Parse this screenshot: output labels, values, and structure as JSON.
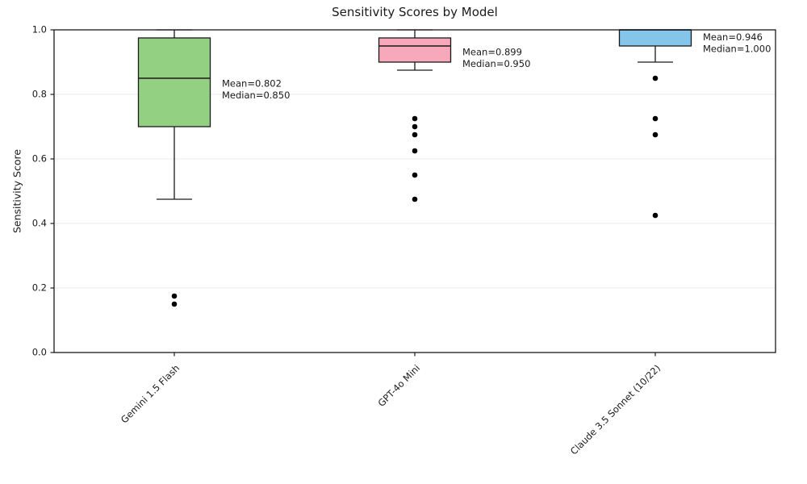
{
  "chart_data": {
    "type": "box",
    "title": "Sensitivity Scores by Model",
    "xlabel": "",
    "ylabel": "Sensitivity Score",
    "ylim": [
      0.0,
      1.0
    ],
    "yticks": [
      0.0,
      0.2,
      0.4,
      0.6,
      0.8,
      1.0
    ],
    "ytick_labels": [
      "0.0",
      "0.2",
      "0.4",
      "0.6",
      "0.8",
      "1.0"
    ],
    "grid": "horizontal gridlines at each y tick, light gray",
    "legend": "none",
    "categories": [
      "Gemini 1.5 Flash",
      "GPT-4o Mini",
      "Claude 3.5 Sonnet (10/22)"
    ],
    "series": [
      {
        "label": "Gemini 1.5 Flash",
        "box_color": "#94d082",
        "whisker_low": 0.475,
        "q1": 0.7,
        "median": 0.85,
        "q3": 0.975,
        "whisker_high": 1.0,
        "outliers": [
          0.175,
          0.15
        ],
        "mean": 0.802,
        "annotation_lines": [
          "Mean=0.802",
          "Median=0.850"
        ]
      },
      {
        "label": "GPT-4o Mini",
        "box_color": "#f7a8ba",
        "whisker_low": 0.875,
        "q1": 0.9,
        "median": 0.95,
        "q3": 0.975,
        "whisker_high": 1.0,
        "outliers": [
          0.725,
          0.7,
          0.675,
          0.625,
          0.55,
          0.475
        ],
        "mean": 0.899,
        "annotation_lines": [
          "Mean=0.899",
          "Median=0.950"
        ]
      },
      {
        "label": "Claude 3.5 Sonnet (10/22)",
        "box_color": "#85c5ea",
        "whisker_low": 0.9,
        "q1": 0.95,
        "median": 1.0,
        "q3": 1.0,
        "whisker_high": 1.0,
        "outliers": [
          0.85,
          0.725,
          0.675,
          0.425
        ],
        "mean": 0.946,
        "annotation_lines": [
          "Mean=0.946",
          "Median=1.000"
        ]
      }
    ],
    "colors": {
      "box_edge": "#1a1a1a",
      "median_line": "#1a1a1a",
      "whisker": "#1a1a1a",
      "outlier": "#000000",
      "gridline": "#e8e8e8",
      "spine": "#1a1a1a",
      "background": "#ffffff"
    }
  }
}
